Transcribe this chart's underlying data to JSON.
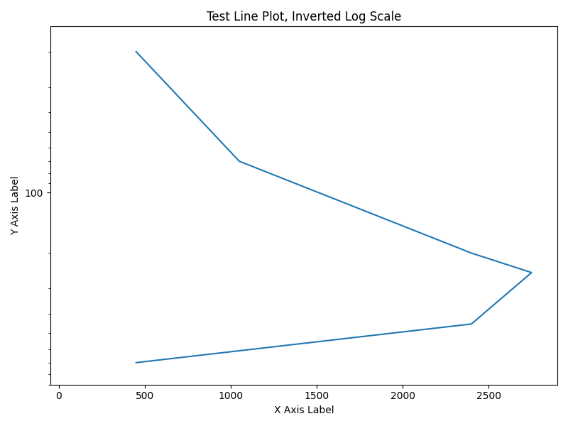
{
  "title": "Test Line Plot, Inverted Log Scale",
  "xlabel": "X Axis Label",
  "ylabel": "Y Axis Label",
  "x": [
    450,
    1050,
    2400,
    2750,
    2400,
    450
  ],
  "y": [
    20,
    70,
    200,
    250,
    450,
    700
  ],
  "line_color": "#1f77b4",
  "line_width": 1.5,
  "figsize": [
    8.0,
    6.0
  ],
  "dpi": 100,
  "xlim_min": -50,
  "xlim_max": 2900,
  "ylim_top": 15,
  "ylim_bottom": 900
}
